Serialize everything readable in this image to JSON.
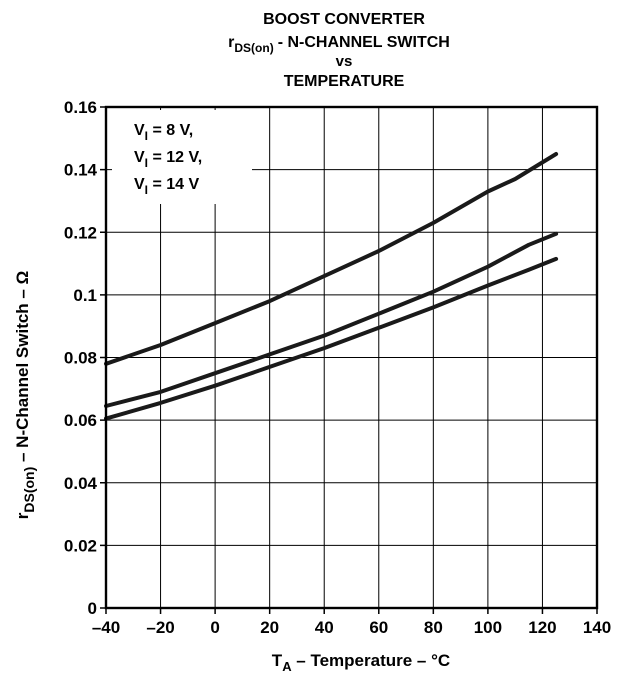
{
  "chart_data": {
    "type": "line",
    "title_lines": [
      "BOOST CONVERTER",
      "- N-CHANNEL SWITCH",
      "vs",
      "TEMPERATURE"
    ],
    "title_symbol": {
      "main": "r",
      "sub": "DS(on)"
    },
    "xlabel": {
      "symbol": "T",
      "sub": "A",
      "text": " – Temperature – °C"
    },
    "ylabel": {
      "symbol": "r",
      "sub": "DS(on)",
      "text": " – N-Channel Switch – Ω"
    },
    "xlim": [
      -40,
      140
    ],
    "ylim": [
      0,
      0.16
    ],
    "x_ticks": [
      -40,
      -20,
      0,
      20,
      40,
      60,
      80,
      100,
      120,
      140
    ],
    "x_tick_labels": [
      "–40",
      "–20",
      "0",
      "20",
      "40",
      "60",
      "80",
      "100",
      "120",
      "140"
    ],
    "y_ticks": [
      0,
      0.02,
      0.04,
      0.06,
      0.08,
      0.1,
      0.12,
      0.14,
      0.16
    ],
    "y_tick_labels": [
      "0",
      "0.02",
      "0.04",
      "0.06",
      "0.08",
      "0.1",
      "0.12",
      "0.14",
      "0.16"
    ],
    "grid": true,
    "legend_position": "top-left",
    "legend_entries": [
      {
        "symbol": "V",
        "sub": "I",
        "text": " = 8 V,"
      },
      {
        "symbol": "V",
        "sub": "I",
        "text": " = 12 V,"
      },
      {
        "symbol": "V",
        "sub": "I",
        "text": " = 14 V"
      }
    ],
    "series": [
      {
        "x": [
          -40,
          -20,
          0,
          20,
          40,
          60,
          80,
          100,
          110,
          125
        ],
        "y": [
          0.078,
          0.084,
          0.091,
          0.098,
          0.106,
          0.114,
          0.123,
          0.133,
          0.137,
          0.145
        ]
      },
      {
        "x": [
          -40,
          -20,
          0,
          20,
          40,
          60,
          80,
          100,
          115,
          125
        ],
        "y": [
          0.0645,
          0.069,
          0.075,
          0.081,
          0.087,
          0.094,
          0.101,
          0.109,
          0.116,
          0.1195
        ]
      },
      {
        "x": [
          -40,
          -20,
          0,
          20,
          40,
          60,
          80,
          100,
          115,
          125
        ],
        "y": [
          0.0605,
          0.0655,
          0.071,
          0.077,
          0.083,
          0.0895,
          0.096,
          0.103,
          0.108,
          0.1115
        ]
      }
    ],
    "colors": {
      "line": "#1a1a1a",
      "grid": "#000000",
      "background": "#ffffff"
    }
  }
}
